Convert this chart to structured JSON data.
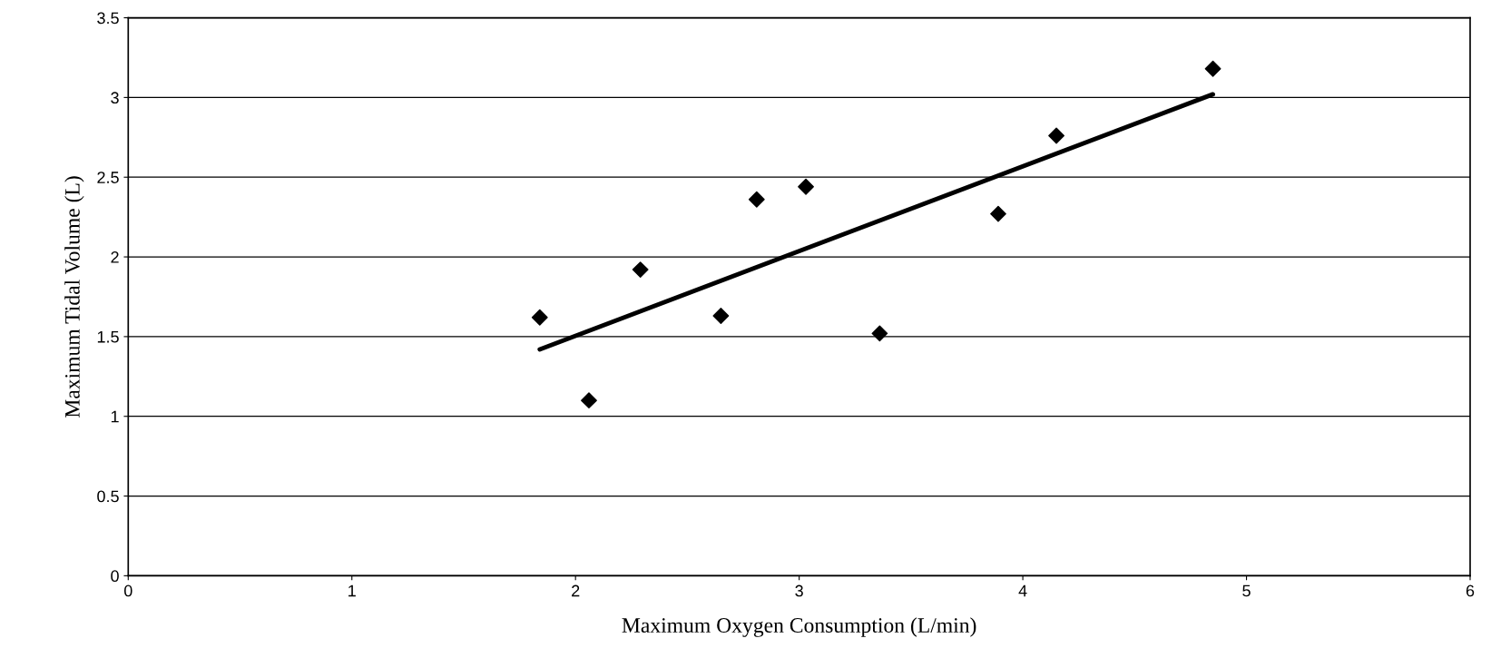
{
  "chart_data": {
    "type": "scatter",
    "xlabel": "Maximum Oxygen Consumption (L/min)",
    "ylabel": "Maximum Tidal Volume (L)",
    "series": [
      {
        "color": "#000000",
        "marker": "diamond",
        "x": [
          1.84,
          2.06,
          2.29,
          2.65,
          2.81,
          3.03,
          3.36,
          3.89,
          4.15,
          4.85
        ],
        "values": [
          1.62,
          1.1,
          1.92,
          1.63,
          2.36,
          2.44,
          1.52,
          2.27,
          2.76,
          3.18
        ]
      },
      {
        "type": "line",
        "color": "#000000",
        "line_style": "solid",
        "x": [
          1.84,
          4.85
        ],
        "values": [
          1.42,
          3.02
        ]
      }
    ],
    "xlim": [
      0,
      6
    ],
    "xticks": [
      0,
      1,
      2,
      3,
      4,
      5,
      6
    ],
    "ylim": [
      0,
      3.5
    ],
    "yticks": [
      0,
      0.5,
      1,
      1.5,
      2,
      2.5,
      3,
      3.5
    ],
    "grid": "y",
    "legend": false
  }
}
